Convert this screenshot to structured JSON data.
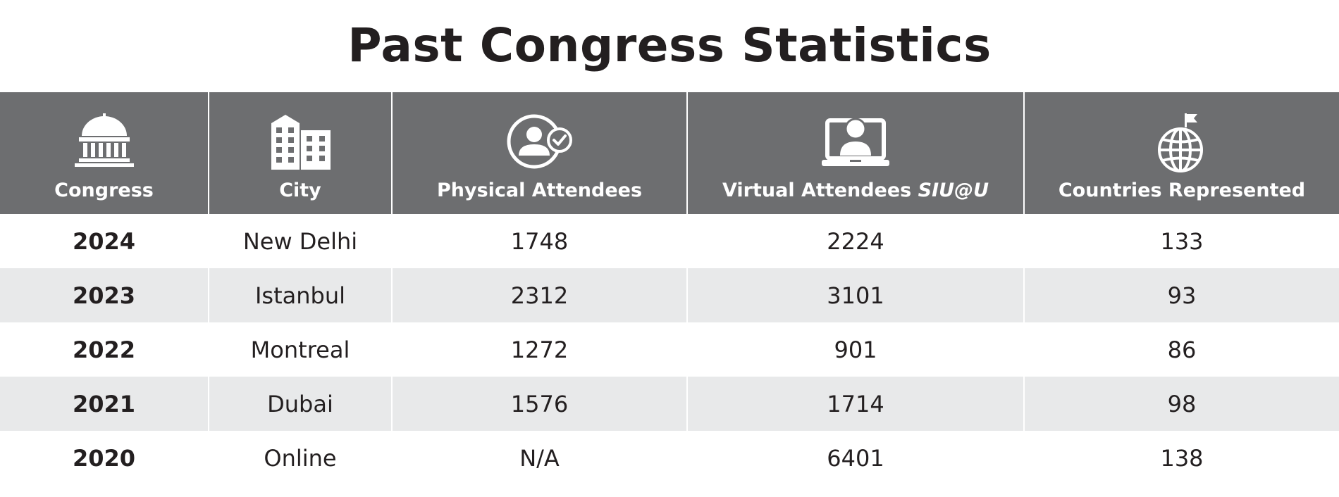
{
  "title": "Past Congress Statistics",
  "columns": [
    {
      "label": "Congress",
      "icon": "capitol-building-icon"
    },
    {
      "label": "City",
      "icon": "city-buildings-icon"
    },
    {
      "label": "Physical Attendees",
      "icon": "person-check-icon"
    },
    {
      "label": "Virtual Attendees",
      "label_em": "SIU@U",
      "icon": "laptop-person-icon"
    },
    {
      "label": "Countries Represented",
      "icon": "globe-flag-icon"
    }
  ],
  "rows": [
    {
      "congress": "2024",
      "city": "New Delhi",
      "physical": "1748",
      "virtual": "2224",
      "countries": "133"
    },
    {
      "congress": "2023",
      "city": "Istanbul",
      "physical": "2312",
      "virtual": "3101",
      "countries": "93"
    },
    {
      "congress": "2022",
      "city": "Montreal",
      "physical": "1272",
      "virtual": "901",
      "countries": "86"
    },
    {
      "congress": "2021",
      "city": "Dubai",
      "physical": "1576",
      "virtual": "1714",
      "countries": "98"
    },
    {
      "congress": "2020",
      "city": "Online",
      "physical": "N/A",
      "virtual": "6401",
      "countries": "138"
    }
  ],
  "colors": {
    "header_bg": "#6d6e70",
    "alt_row_bg": "#e8e9ea",
    "text": "#231f20"
  }
}
